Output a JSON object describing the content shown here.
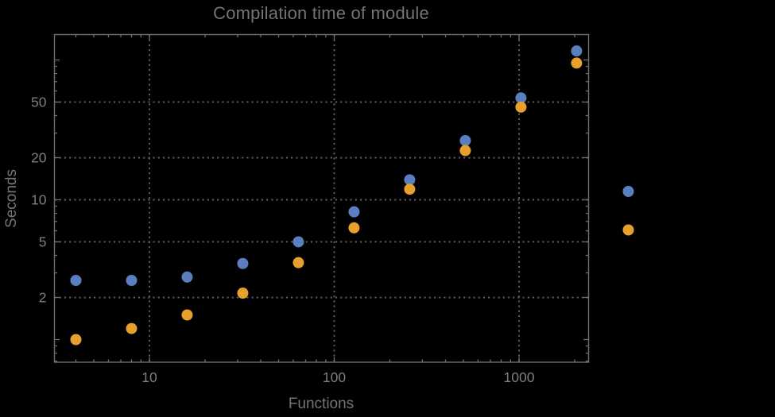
{
  "chart_data": {
    "type": "scatter",
    "title": "Compilation time of module",
    "xlabel": "Functions",
    "ylabel": "Seconds",
    "x_scale": "log",
    "y_scale": "log",
    "xlim": [
      3.05,
      2350
    ],
    "ylim": [
      0.68,
      153
    ],
    "grid": "dotted lines at labeled ticks, gray on black",
    "x": [
      4,
      8,
      16,
      32,
      64,
      128,
      256,
      512,
      1024,
      2048
    ],
    "series": [
      {
        "name": "blue",
        "color": "#5A7EC0",
        "values": [
          2.65,
          2.65,
          2.8,
          3.5,
          5.0,
          8.2,
          13.9,
          26.5,
          53.5,
          116
        ]
      },
      {
        "name": "orange",
        "color": "#E8A02C",
        "values": [
          1.0,
          1.2,
          1.5,
          2.15,
          3.55,
          6.3,
          11.9,
          22.5,
          46,
          95
        ]
      }
    ],
    "x_ticks_labeled": [
      10,
      100,
      1000
    ],
    "y_ticks_labeled": [
      2,
      5,
      10,
      20,
      50
    ],
    "y_ticks_unlabeled_decades": [
      1,
      100
    ],
    "legend": {
      "position": "right-of-frame",
      "items": [
        {
          "label": "",
          "color": "#5A7EC0"
        },
        {
          "label": "",
          "color": "#E8A02C"
        }
      ]
    },
    "colors": {
      "background": "#000000",
      "frame": "#6e6e6e",
      "gridline": "#5f5f5f",
      "tick": "#6e6e6e",
      "title_text": "#747474",
      "tick_text": "#7e7e7e",
      "axis_label_text": "#757575"
    }
  }
}
